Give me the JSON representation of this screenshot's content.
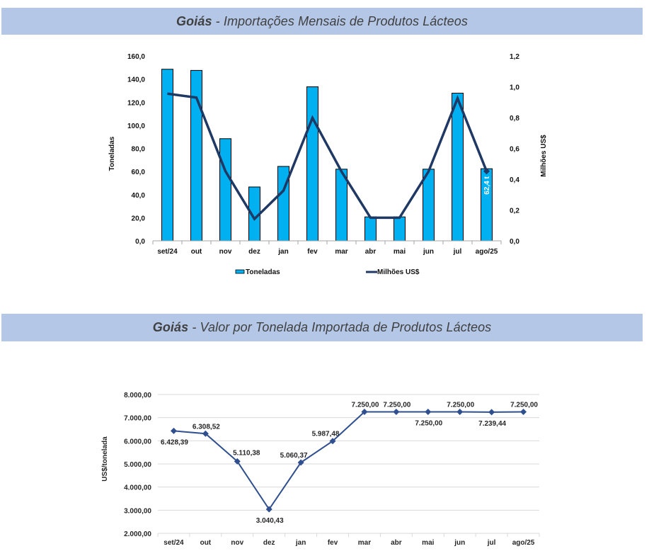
{
  "sections": [
    {
      "title_bold": "Goiás",
      "title_rest": " - Importações Mensais de Produtos Lácteos"
    },
    {
      "title_bold": "Goiás",
      "title_rest": " - Valor por Tonelada Importada de Produtos Lácteos"
    }
  ],
  "colors": {
    "title_bar": "#B4C7E7",
    "bar_fill": "#00B0F0",
    "usd_line": "#1F3864",
    "price_line": "#2F4F8F",
    "gridline": "#D9D9D9"
  },
  "chart_data": [
    {
      "type": "bar",
      "combo": true,
      "title": "Goiás - Importações Mensais de Produtos Lácteos",
      "categories": [
        "set/24",
        "out",
        "nov",
        "dez",
        "jan",
        "fev",
        "mar",
        "abr",
        "mai",
        "jun",
        "jul",
        "ago/25"
      ],
      "series": [
        {
          "name": "Toneladas",
          "type": "bar",
          "axis": "left",
          "values": [
            148.5,
            147.5,
            88.4,
            46.6,
            64.4,
            133.3,
            62.0,
            20.7,
            20.7,
            62.0,
            127.8,
            62.4
          ]
        },
        {
          "name": "Milhões US$",
          "type": "line",
          "axis": "right",
          "values": [
            0.955,
            0.93,
            0.452,
            0.142,
            0.326,
            0.798,
            0.45,
            0.15,
            0.15,
            0.45,
            0.925,
            0.452
          ]
        }
      ],
      "bar_data_label": {
        "category_index": 11,
        "text": "62,4 t"
      },
      "ylabel": "Toneladas",
      "y2label": "Milhões US$",
      "ylim": [
        0,
        160
      ],
      "y2lim": [
        0,
        1.2
      ],
      "yticks": [
        "0,0",
        "20,0",
        "40,0",
        "60,0",
        "80,0",
        "100,0",
        "120,0",
        "140,0",
        "160,0"
      ],
      "y2ticks": [
        "0,0",
        "0,2",
        "0,4",
        "0,6",
        "0,8",
        "1,0",
        "1,2"
      ],
      "grid": false,
      "legend": "bottom",
      "legend_entries": [
        "Toneladas",
        "Milhões US$"
      ]
    },
    {
      "type": "line",
      "title": "Goiás - Valor por Tonelada Importada de Produtos Lácteos",
      "categories": [
        "set/24",
        "out",
        "nov",
        "dez",
        "jan",
        "fev",
        "mar",
        "abr",
        "mai",
        "jun",
        "jul",
        "ago/25"
      ],
      "series": [
        {
          "name": "US$/tonelada",
          "values": [
            6428.39,
            6308.52,
            5110.38,
            3040.43,
            5060.37,
            5987.48,
            7250.0,
            7250.0,
            7250.0,
            7250.0,
            7239.44,
            7250.0
          ],
          "labels": [
            "6.428,39",
            "6.308,52",
            "5.110,38",
            "3.040,43",
            "5.060,37",
            "5.987,48",
            "7.250,00",
            "7.250,00",
            "7.250,00",
            "7.250,00",
            "7.239,44",
            "7.250,00"
          ],
          "label_positions": [
            "below",
            "above",
            "above-right",
            "below",
            "above-left",
            "above-left",
            "above",
            "above",
            "below",
            "above",
            "below",
            "above"
          ]
        }
      ],
      "ylabel": "US$/tonelada",
      "ylim": [
        2000,
        8000
      ],
      "yticks": [
        "2.000,00",
        "3.000,00",
        "4.000,00",
        "5.000,00",
        "6.000,00",
        "7.000,00",
        "8.000,00"
      ],
      "grid": true,
      "legend": "none"
    }
  ]
}
